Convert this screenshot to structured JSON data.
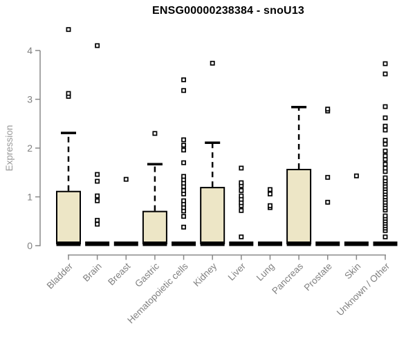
{
  "chart_data": {
    "type": "box",
    "title": "ENSG00000238384 - snoU13",
    "ylabel": "Expression",
    "xlabel": "",
    "ylim": [
      0,
      4
    ],
    "yticks": [
      0,
      1,
      2,
      3,
      4
    ],
    "grid": false,
    "legend": "none",
    "categories": [
      "Bladder",
      "Brain",
      "Breast",
      "Gastric",
      "Hematopoietic cells",
      "Kidney",
      "Liver",
      "Lung",
      "Pancreas",
      "Prostate",
      "Skin",
      "Unknown / Other"
    ],
    "series": [
      {
        "label": "Bladder",
        "q1": 0,
        "median": 0,
        "q3": 1.11,
        "whisker_low": 0,
        "whisker_high": 2.31,
        "outliers": [
          3.06,
          3.12,
          4.43
        ]
      },
      {
        "label": "Brain",
        "q1": 0,
        "median": 0,
        "q3": 0,
        "whisker_low": 0,
        "whisker_high": 0,
        "outliers": [
          0.44,
          0.52,
          0.92,
          1.02,
          1.32,
          1.46,
          4.1
        ]
      },
      {
        "label": "Breast",
        "q1": 0,
        "median": 0,
        "q3": 0,
        "whisker_low": 0,
        "whisker_high": 0,
        "outliers": [
          1.36
        ]
      },
      {
        "label": "Gastric",
        "q1": 0,
        "median": 0,
        "q3": 0.7,
        "whisker_low": 0,
        "whisker_high": 1.67,
        "outliers": [
          2.3
        ]
      },
      {
        "label": "Hematopoietic cells",
        "q1": 0,
        "median": 0,
        "q3": 0,
        "whisker_low": 0,
        "whisker_high": 0,
        "outliers": [
          0.38,
          0.6,
          0.71,
          0.78,
          0.85,
          0.92,
          1.06,
          1.13,
          1.21,
          1.28,
          1.35,
          1.42,
          1.7,
          1.96,
          2.06,
          2.17,
          3.18,
          3.4
        ]
      },
      {
        "label": "Kidney",
        "q1": 0,
        "median": 0,
        "q3": 1.19,
        "whisker_low": 0,
        "whisker_high": 2.11,
        "outliers": [
          3.74
        ]
      },
      {
        "label": "Liver",
        "q1": 0,
        "median": 0,
        "q3": 0,
        "whisker_low": 0,
        "whisker_high": 0,
        "outliers": [
          0.18,
          0.72,
          0.82,
          0.88,
          0.95,
          1.02,
          1.13,
          1.23,
          1.29,
          1.59
        ]
      },
      {
        "label": "Lung",
        "q1": 0,
        "median": 0,
        "q3": 0,
        "whisker_low": 0,
        "whisker_high": 0,
        "outliers": [
          0.78,
          0.82,
          1.06,
          1.15
        ]
      },
      {
        "label": "Pancreas",
        "q1": 0,
        "median": 0,
        "q3": 1.56,
        "whisker_low": 0,
        "whisker_high": 2.84,
        "outliers": []
      },
      {
        "label": "Prostate",
        "q1": 0,
        "median": 0,
        "q3": 0,
        "whisker_low": 0,
        "whisker_high": 0,
        "outliers": [
          0.89,
          1.4,
          2.76,
          2.8
        ]
      },
      {
        "label": "Skin",
        "q1": 0,
        "median": 0,
        "q3": 0,
        "whisker_low": 0,
        "whisker_high": 0,
        "outliers": [
          1.43
        ]
      },
      {
        "label": "Unknown / Other",
        "q1": 0,
        "median": 0,
        "q3": 0,
        "whisker_low": 0,
        "whisker_high": 0,
        "outliers": [
          0.18,
          0.31,
          0.36,
          0.41,
          0.46,
          0.51,
          0.56,
          0.61,
          0.73,
          0.78,
          0.84,
          0.89,
          0.95,
          1.0,
          1.06,
          1.11,
          1.17,
          1.22,
          1.28,
          1.33,
          1.39,
          1.52,
          1.59,
          1.67,
          1.77,
          1.84,
          1.94,
          2.08,
          2.16,
          2.37,
          2.45,
          2.62,
          2.85,
          3.52,
          3.73
        ]
      }
    ],
    "colors": {
      "background": "#FFFFFF",
      "box_fill": "#EDE6C6",
      "box_border": "#000000",
      "median": "#000000",
      "whisker": "#000000",
      "outlier_stroke": "#000000",
      "outlier_fill": "#FFFFFF",
      "axis": "#888888",
      "tick_label": "#808080",
      "axis_title": "#999999",
      "title": "#000000"
    }
  }
}
